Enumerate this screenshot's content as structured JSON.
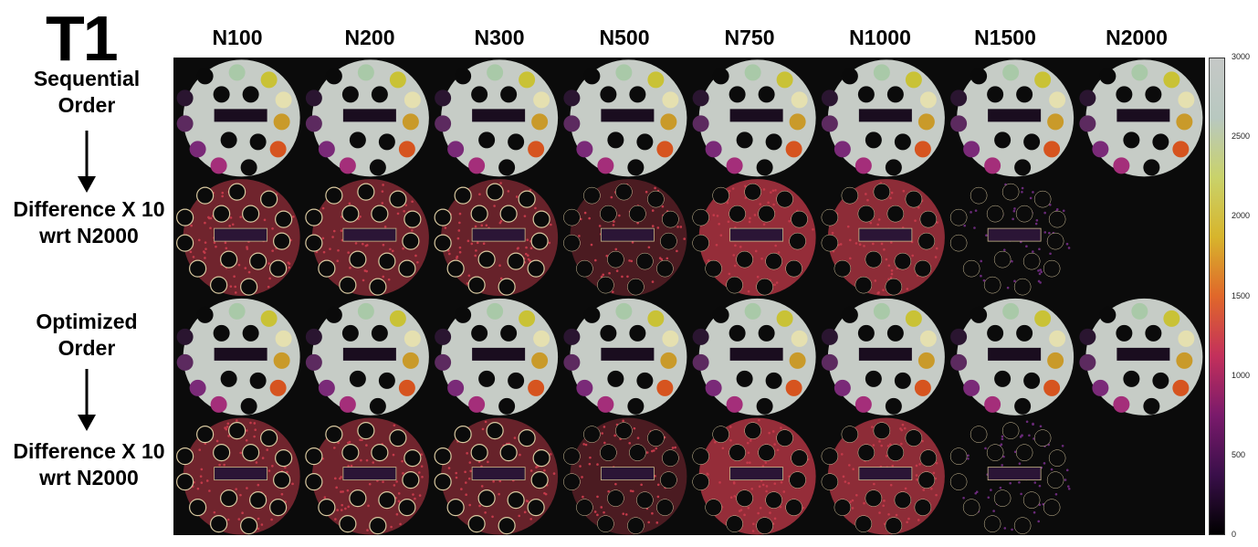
{
  "title": "T1",
  "columns": [
    "N100",
    "N200",
    "N300",
    "N500",
    "N750",
    "N1000",
    "N1500",
    "N2000"
  ],
  "rows": [
    {
      "label_line1": "Sequential",
      "label_line2": "Order",
      "kind": "map"
    },
    {
      "label_line1": "Difference X 10",
      "label_line2": "wrt N2000",
      "kind": "diff"
    },
    {
      "label_line1": "Optimized",
      "label_line2": "Order",
      "kind": "map"
    },
    {
      "label_line1": "Difference X 10",
      "label_line2": "wrt N2000",
      "kind": "diff"
    }
  ],
  "colorbar": {
    "ticks": [
      "3000",
      "2500",
      "2000",
      "1500",
      "1000",
      "500",
      "0"
    ],
    "min": 0,
    "max": 3000,
    "stops": [
      "#000000",
      "#3a0f4a",
      "#7a1a6b",
      "#c3305b",
      "#e0672a",
      "#d7b52c",
      "#c9d26a",
      "#b8c8c0",
      "#c5c8c6"
    ]
  },
  "colors": {
    "background": "#0b0b0b",
    "phantom": "#c6ccc6",
    "diff_red": "#c43a4a"
  }
}
